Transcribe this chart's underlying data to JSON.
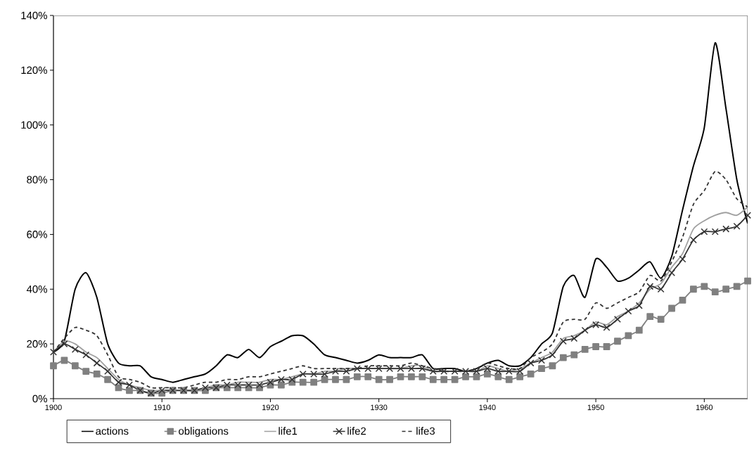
{
  "chart_data": {
    "type": "line",
    "x": [
      1900,
      1901,
      1902,
      1903,
      1904,
      1905,
      1906,
      1907,
      1908,
      1909,
      1910,
      1911,
      1912,
      1913,
      1914,
      1915,
      1916,
      1917,
      1918,
      1919,
      1920,
      1921,
      1922,
      1923,
      1924,
      1925,
      1926,
      1927,
      1928,
      1929,
      1930,
      1931,
      1932,
      1933,
      1934,
      1935,
      1936,
      1937,
      1938,
      1939,
      1940,
      1941,
      1942,
      1943,
      1944,
      1945,
      1946,
      1947,
      1948,
      1949,
      1950,
      1951,
      1952,
      1953,
      1954,
      1955,
      1956,
      1957,
      1958,
      1959,
      1960,
      1961,
      1962,
      1963,
      1964
    ],
    "series": [
      {
        "name": "actions",
        "color": "#000000",
        "marker": "none",
        "line_style": "solid",
        "values": [
          17,
          21,
          40,
          46,
          37,
          20,
          13,
          12,
          12,
          8,
          7,
          6,
          7,
          8,
          9,
          12,
          16,
          15,
          18,
          15,
          19,
          21,
          23,
          23,
          20,
          16,
          15,
          14,
          13,
          14,
          16,
          15,
          15,
          15,
          16,
          11,
          11,
          11,
          10,
          11,
          13,
          14,
          12,
          12,
          15,
          20,
          24,
          41,
          45,
          37,
          51,
          48,
          43,
          44,
          47,
          50,
          44,
          52,
          69,
          85,
          99,
          130,
          106,
          80,
          64
        ]
      },
      {
        "name": "obligations",
        "color": "#808080",
        "marker": "square",
        "line_style": "solid",
        "values": [
          12,
          14,
          12,
          10,
          9,
          7,
          4,
          3,
          3,
          2,
          2,
          3,
          3,
          3,
          3,
          4,
          4,
          4,
          4,
          4,
          5,
          5,
          6,
          6,
          6,
          7,
          7,
          7,
          8,
          8,
          7,
          7,
          8,
          8,
          8,
          7,
          7,
          7,
          8,
          8,
          9,
          8,
          7,
          8,
          9,
          11,
          12,
          15,
          16,
          18,
          19,
          19,
          21,
          23,
          25,
          30,
          29,
          33,
          36,
          40,
          41,
          39,
          40,
          41,
          43
        ]
      },
      {
        "name": "life1",
        "color": "#a0a0a0",
        "marker": "none",
        "line_style": "solid",
        "values": [
          17,
          21,
          20,
          17,
          15,
          11,
          7,
          5,
          4,
          3,
          3,
          3,
          3,
          3,
          4,
          5,
          5,
          6,
          6,
          6,
          7,
          7,
          8,
          9,
          9,
          10,
          10,
          11,
          11,
          11,
          11,
          11,
          11,
          12,
          12,
          10,
          10,
          10,
          10,
          10,
          12,
          11,
          10,
          11,
          13,
          15,
          17,
          22,
          23,
          25,
          28,
          27,
          30,
          32,
          35,
          40,
          42,
          48,
          53,
          62,
          65,
          67,
          68,
          67,
          70
        ]
      },
      {
        "name": "life2",
        "color": "#333333",
        "marker": "cross",
        "line_style": "solid",
        "values": [
          17,
          20,
          18,
          16,
          13,
          10,
          6,
          5,
          3,
          2,
          3,
          3,
          3,
          3,
          4,
          4,
          5,
          5,
          5,
          5,
          6,
          7,
          7,
          9,
          9,
          9,
          10,
          10,
          11,
          11,
          11,
          11,
          11,
          11,
          11,
          10,
          10,
          10,
          10,
          10,
          11,
          10,
          10,
          10,
          13,
          14,
          16,
          21,
          22,
          25,
          27,
          26,
          29,
          32,
          34,
          41,
          40,
          46,
          51,
          58,
          61,
          61,
          62,
          63,
          67
        ]
      },
      {
        "name": "life3",
        "color": "#333333",
        "marker": "none",
        "line_style": "dashed",
        "values": [
          17,
          22,
          26,
          25,
          23,
          16,
          8,
          7,
          6,
          4,
          4,
          4,
          4,
          5,
          6,
          6,
          7,
          7,
          8,
          8,
          9,
          10,
          11,
          12,
          11,
          11,
          11,
          11,
          11,
          12,
          12,
          12,
          12,
          13,
          12,
          11,
          10,
          10,
          10,
          11,
          13,
          12,
          11,
          11,
          15,
          17,
          20,
          28,
          29,
          29,
          35,
          33,
          35,
          37,
          39,
          45,
          43,
          50,
          59,
          71,
          76,
          83,
          80,
          73,
          70
        ]
      }
    ],
    "xlim": [
      1900,
      1964
    ],
    "xticks": [
      1900,
      1910,
      1920,
      1930,
      1940,
      1950,
      1960
    ],
    "ylim": [
      0,
      140
    ],
    "yticks": [
      {
        "value": 0,
        "label": "0%"
      },
      {
        "value": 20,
        "label": "20%"
      },
      {
        "value": 40,
        "label": "40%"
      },
      {
        "value": 60,
        "label": "60%"
      },
      {
        "value": 80,
        "label": "80%"
      },
      {
        "value": 100,
        "label": "100%"
      },
      {
        "value": 120,
        "label": "120%"
      },
      {
        "value": 140,
        "label": "140%"
      }
    ],
    "grid": false,
    "legend": "bottom"
  }
}
